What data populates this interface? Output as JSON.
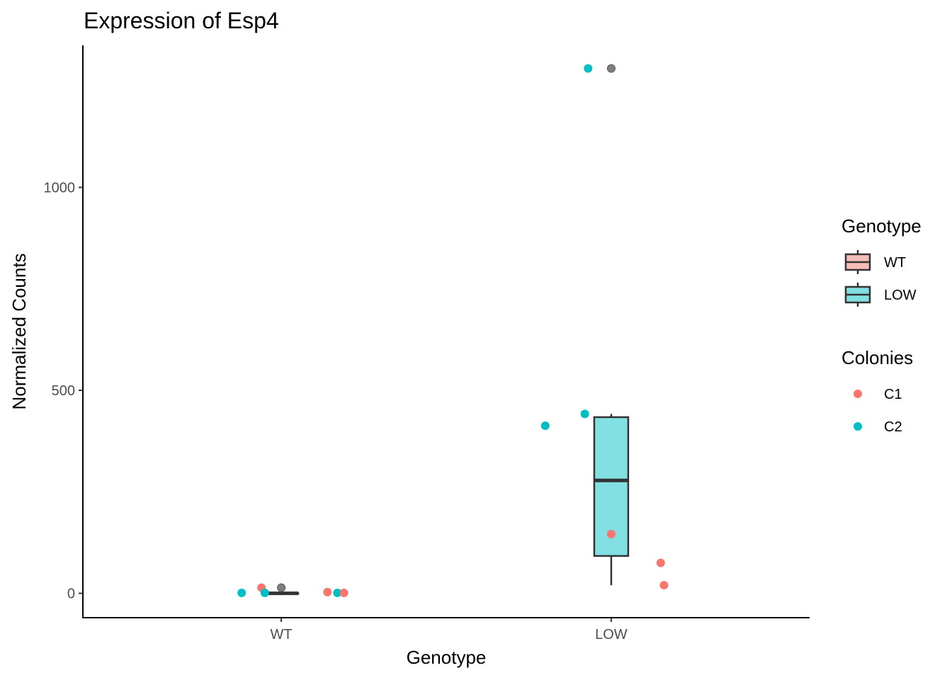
{
  "chart_data": {
    "type": "boxplot",
    "title": "Expression of Esp4",
    "xlabel": "Genotype",
    "ylabel": "Normalized Counts",
    "categories": [
      "WT",
      "LOW"
    ],
    "ylim": [
      -60,
      1350
    ],
    "yticks": [
      0,
      500,
      1000
    ],
    "grid": false,
    "boxes": [
      {
        "category": "WT",
        "fill": "#f8bcb8",
        "min": 0,
        "q1": 0,
        "median": 0,
        "q3": 0,
        "max": 0,
        "outliers": [
          14
        ]
      },
      {
        "category": "LOW",
        "fill": "#82e0e2",
        "min": 20,
        "q1": 92,
        "median": 278,
        "q3": 434,
        "max": 442,
        "outliers": [
          1293
        ]
      }
    ],
    "points": [
      {
        "category": "WT",
        "colony": "C1",
        "y": 14,
        "jitter": -0.06
      },
      {
        "category": "WT",
        "colony": "C2",
        "y": 1,
        "jitter": -0.12
      },
      {
        "category": "WT",
        "colony": "C2",
        "y": 1,
        "jitter": -0.05
      },
      {
        "category": "WT",
        "colony": "C1",
        "y": 3,
        "jitter": 0.14
      },
      {
        "category": "WT",
        "colony": "C2",
        "y": 1,
        "jitter": 0.17
      },
      {
        "category": "WT",
        "colony": "C1",
        "y": 1,
        "jitter": 0.19
      },
      {
        "category": "LOW",
        "colony": "C2",
        "y": 1293,
        "jitter": -0.07
      },
      {
        "category": "LOW",
        "colony": "C2",
        "y": 442,
        "jitter": -0.08
      },
      {
        "category": "LOW",
        "colony": "C2",
        "y": 413,
        "jitter": -0.2
      },
      {
        "category": "LOW",
        "colony": "C1",
        "y": 146,
        "jitter": 0.0
      },
      {
        "category": "LOW",
        "colony": "C1",
        "y": 75,
        "jitter": 0.15
      },
      {
        "category": "LOW",
        "colony": "C1",
        "y": 20,
        "jitter": 0.16
      }
    ],
    "legends": [
      {
        "title": "Genotype",
        "kind": "box",
        "entries": [
          {
            "label": "WT",
            "fill": "#f8bcb8"
          },
          {
            "label": "LOW",
            "fill": "#82e0e2"
          }
        ]
      },
      {
        "title": "Colonies",
        "kind": "point",
        "entries": [
          {
            "label": "C1",
            "color": "#f8766d"
          },
          {
            "label": "C2",
            "color": "#00bfc4"
          }
        ]
      }
    ],
    "legend_position": "right",
    "colors": {
      "C1": "#f8766d",
      "C2": "#00bfc4",
      "outlier": "#7f7f7f",
      "box_stroke": "#333333"
    }
  }
}
